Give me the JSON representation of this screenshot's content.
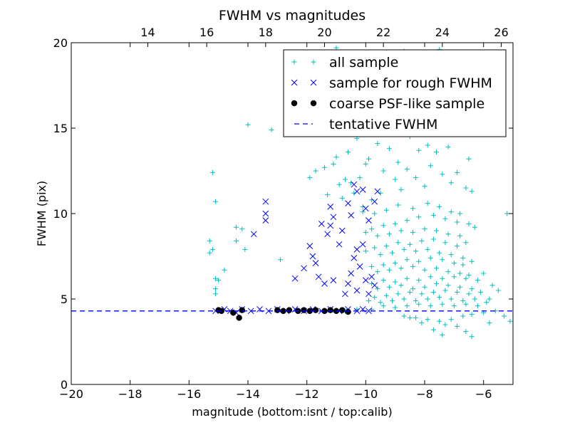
{
  "chart_data": {
    "type": "scatter",
    "title": "FWHM vs magnitudes",
    "xlabel": "magnitude (bottom:isnt / top:calib)",
    "ylabel": "FWHM (pix)",
    "xlim": [
      -20,
      -5
    ],
    "ylim": [
      0,
      20
    ],
    "x_ticks": [
      -20,
      -18,
      -16,
      -14,
      -12,
      -10,
      -8,
      -6
    ],
    "x_tick_labels": [
      "−20",
      "−18",
      "−16",
      "−14",
      "−12",
      "−10",
      "−8",
      "−6"
    ],
    "y_ticks": [
      0,
      5,
      10,
      15,
      20
    ],
    "y_tick_labels": [
      "0",
      "5",
      "10",
      "15",
      "20"
    ],
    "top_axis": {
      "label_offset": 31.4,
      "ticks": [
        14,
        16,
        18,
        20,
        22,
        24,
        26
      ],
      "tick_labels": [
        "14",
        "16",
        "18",
        "20",
        "22",
        "24",
        "26"
      ]
    },
    "grid": false,
    "legend_position": "top-right",
    "tentative_fwhm": 4.3,
    "series": [
      {
        "name": "all sample",
        "marker": "plus",
        "color": "#00bfbf",
        "points": [
          [
            -15.2,
            12.4
          ],
          [
            -15.1,
            10.7
          ],
          [
            -15.3,
            8.4
          ],
          [
            -15.3,
            7.7
          ],
          [
            -15.2,
            7.9
          ],
          [
            -15.1,
            6.2
          ],
          [
            -15.0,
            6.1
          ],
          [
            -15.1,
            5.6
          ],
          [
            -15.1,
            5.3
          ],
          [
            -14.8,
            6.7
          ],
          [
            -14.4,
            9.2
          ],
          [
            -14.2,
            9.1
          ],
          [
            -14.1,
            7.9
          ],
          [
            -14.4,
            8.4
          ],
          [
            -14.0,
            15.2
          ],
          [
            -13.2,
            14.9
          ],
          [
            -12.9,
            7.3
          ],
          [
            -11.9,
            12.1
          ],
          [
            -11.7,
            12.5
          ],
          [
            -11.4,
            12.7
          ],
          [
            -11.1,
            12.9
          ],
          [
            -11.0,
            13.3
          ],
          [
            -10.9,
            11.7
          ],
          [
            -10.7,
            12.0
          ],
          [
            -10.5,
            11.8
          ],
          [
            -10.3,
            14.4
          ],
          [
            -10.0,
            12.9
          ],
          [
            -10.2,
            12.1
          ],
          [
            -10.4,
            11.2
          ],
          [
            -10.1,
            10.4
          ],
          [
            -11.0,
            19.7
          ],
          [
            -9.3,
            19.2
          ],
          [
            -8.7,
            19.5
          ],
          [
            -7.5,
            19.6
          ],
          [
            -9.9,
            13.2
          ],
          [
            -9.6,
            14.1
          ],
          [
            -9.2,
            13.8
          ],
          [
            -8.9,
            13.0
          ],
          [
            -8.5,
            14.5
          ],
          [
            -8.2,
            13.7
          ],
          [
            -7.9,
            14.0
          ],
          [
            -7.6,
            13.6
          ],
          [
            -7.2,
            13.9
          ],
          [
            -7.8,
            12.8
          ],
          [
            -8.6,
            12.6
          ],
          [
            -9.4,
            12.5
          ],
          [
            -9.0,
            12.0
          ],
          [
            -8.3,
            12.1
          ],
          [
            -7.4,
            12.3
          ],
          [
            -6.9,
            12.4
          ],
          [
            -6.6,
            11.5
          ],
          [
            -6.4,
            11.3
          ],
          [
            -7.1,
            11.8
          ],
          [
            -8.0,
            11.6
          ],
          [
            -8.8,
            11.4
          ],
          [
            -9.5,
            11.2
          ],
          [
            -9.8,
            10.8
          ],
          [
            -10.1,
            10.1
          ],
          [
            -9.7,
            10.0
          ],
          [
            -9.3,
            10.2
          ],
          [
            -8.9,
            10.5
          ],
          [
            -8.4,
            10.3
          ],
          [
            -7.9,
            10.6
          ],
          [
            -7.5,
            10.4
          ],
          [
            -7.1,
            10.1
          ],
          [
            -6.8,
            10.0
          ],
          [
            -6.5,
            9.4
          ],
          [
            -6.3,
            9.2
          ],
          [
            -6.9,
            9.5
          ],
          [
            -7.3,
            9.7
          ],
          [
            -7.7,
            9.9
          ],
          [
            -8.2,
            9.8
          ],
          [
            -8.6,
            9.6
          ],
          [
            -9.0,
            9.4
          ],
          [
            -9.4,
            9.3
          ],
          [
            -9.8,
            9.1
          ],
          [
            -10.0,
            8.9
          ],
          [
            -9.6,
            8.7
          ],
          [
            -9.2,
            8.8
          ],
          [
            -8.8,
            9.0
          ],
          [
            -8.4,
            8.9
          ],
          [
            -8.0,
            9.1
          ],
          [
            -7.6,
            9.0
          ],
          [
            -7.2,
            8.8
          ],
          [
            -6.8,
            8.7
          ],
          [
            -6.6,
            8.3
          ],
          [
            -6.9,
            8.1
          ],
          [
            -7.3,
            8.3
          ],
          [
            -7.7,
            8.5
          ],
          [
            -8.1,
            8.4
          ],
          [
            -8.5,
            8.2
          ],
          [
            -8.9,
            8.3
          ],
          [
            -9.3,
            8.1
          ],
          [
            -9.7,
            8.0
          ],
          [
            -10.0,
            7.8
          ],
          [
            -9.5,
            7.6
          ],
          [
            -9.1,
            7.7
          ],
          [
            -8.7,
            7.9
          ],
          [
            -8.3,
            7.8
          ],
          [
            -7.9,
            7.9
          ],
          [
            -7.5,
            7.7
          ],
          [
            -7.1,
            7.6
          ],
          [
            -6.7,
            7.4
          ],
          [
            -6.4,
            7.2
          ],
          [
            -6.7,
            7.0
          ],
          [
            -7.0,
            7.1
          ],
          [
            -7.4,
            7.3
          ],
          [
            -7.8,
            7.4
          ],
          [
            -8.2,
            7.2
          ],
          [
            -8.6,
            7.3
          ],
          [
            -9.0,
            7.1
          ],
          [
            -9.4,
            7.0
          ],
          [
            -9.8,
            6.9
          ],
          [
            -9.6,
            6.6
          ],
          [
            -9.2,
            6.7
          ],
          [
            -8.8,
            6.8
          ],
          [
            -8.4,
            6.9
          ],
          [
            -8.0,
            6.7
          ],
          [
            -7.6,
            6.8
          ],
          [
            -7.2,
            6.6
          ],
          [
            -6.8,
            6.5
          ],
          [
            -6.5,
            6.4
          ],
          [
            -6.2,
            6.1
          ],
          [
            -6.6,
            6.2
          ],
          [
            -7.0,
            6.3
          ],
          [
            -7.4,
            6.2
          ],
          [
            -7.8,
            6.3
          ],
          [
            -8.2,
            6.1
          ],
          [
            -8.6,
            6.2
          ],
          [
            -9.0,
            6.0
          ],
          [
            -9.4,
            6.1
          ],
          [
            -9.8,
            5.9
          ],
          [
            -9.6,
            5.6
          ],
          [
            -9.2,
            5.7
          ],
          [
            -8.8,
            5.8
          ],
          [
            -8.4,
            5.6
          ],
          [
            -8.0,
            5.7
          ],
          [
            -7.6,
            5.9
          ],
          [
            -7.2,
            5.8
          ],
          [
            -6.8,
            5.7
          ],
          [
            -6.4,
            5.6
          ],
          [
            -6.1,
            5.4
          ],
          [
            -6.5,
            5.3
          ],
          [
            -6.9,
            5.4
          ],
          [
            -7.3,
            5.5
          ],
          [
            -7.7,
            5.4
          ],
          [
            -8.1,
            5.3
          ],
          [
            -8.5,
            5.4
          ],
          [
            -8.9,
            5.3
          ],
          [
            -9.3,
            5.2
          ],
          [
            -9.7,
            5.1
          ],
          [
            -9.9,
            4.9
          ],
          [
            -9.5,
            4.8
          ],
          [
            -9.1,
            4.9
          ],
          [
            -8.7,
            5.0
          ],
          [
            -8.3,
            4.9
          ],
          [
            -7.9,
            5.0
          ],
          [
            -7.5,
            5.1
          ],
          [
            -7.1,
            5.0
          ],
          [
            -6.7,
            4.9
          ],
          [
            -6.3,
            5.0
          ],
          [
            -5.9,
            4.8
          ],
          [
            -6.2,
            4.6
          ],
          [
            -6.6,
            4.7
          ],
          [
            -7.0,
            4.6
          ],
          [
            -7.4,
            4.7
          ],
          [
            -7.8,
            4.6
          ],
          [
            -8.2,
            4.7
          ],
          [
            -8.6,
            4.6
          ],
          [
            -9.0,
            4.5
          ],
          [
            -9.4,
            4.6
          ],
          [
            -9.8,
            4.4
          ],
          [
            -10.3,
            4.4
          ],
          [
            -10.7,
            4.3
          ],
          [
            -8.7,
            4.0
          ],
          [
            -8.3,
            3.9
          ],
          [
            -7.9,
            3.8
          ],
          [
            -7.5,
            3.7
          ],
          [
            -7.1,
            3.8
          ],
          [
            -6.7,
            4.0
          ],
          [
            -6.4,
            4.1
          ],
          [
            -6.0,
            4.2
          ],
          [
            -5.6,
            4.3
          ],
          [
            -5.3,
            4.0
          ],
          [
            -5.1,
            3.7
          ],
          [
            -6.9,
            3.4
          ],
          [
            -6.6,
            3.1
          ],
          [
            -7.3,
            3.5
          ],
          [
            -7.7,
            3.2
          ],
          [
            -7.4,
            2.9
          ],
          [
            -6.4,
            2.8
          ],
          [
            -8.1,
            3.6
          ],
          [
            -8.5,
            3.9
          ],
          [
            -5.8,
            3.6
          ],
          [
            -5.2,
            10.0
          ],
          [
            -6.5,
            13.2
          ],
          [
            -5.8,
            5.0
          ],
          [
            -5.5,
            5.5
          ],
          [
            -6.0,
            6.5
          ],
          [
            -5.7,
            5.8
          ],
          [
            -9.1,
            15.5
          ],
          [
            -7.8,
            15.0
          ],
          [
            -8.4,
            16.8
          ],
          [
            -7.2,
            17.6
          ],
          [
            -8.0,
            18.3
          ],
          [
            -9.6,
            16.2
          ],
          [
            -6.9,
            15.4
          ],
          [
            -10.6,
            13.6
          ],
          [
            -10.8,
            10.9
          ],
          [
            -11.3,
            11.1
          ]
        ]
      },
      {
        "name": "sample for rough FWHM",
        "marker": "x",
        "color": "#0000ff",
        "points": [
          [
            -13.4,
            10.7
          ],
          [
            -13.4,
            10.0
          ],
          [
            -13.4,
            9.6
          ],
          [
            -13.8,
            8.8
          ],
          [
            -12.4,
            6.2
          ],
          [
            -12.1,
            6.8
          ],
          [
            -11.9,
            8.1
          ],
          [
            -11.8,
            7.5
          ],
          [
            -11.7,
            7.1
          ],
          [
            -11.6,
            6.3
          ],
          [
            -11.5,
            9.4
          ],
          [
            -11.3,
            8.8
          ],
          [
            -11.2,
            10.4
          ],
          [
            -11.1,
            9.8
          ],
          [
            -11.2,
            9.3
          ],
          [
            -11.4,
            5.9
          ],
          [
            -11.1,
            6.1
          ],
          [
            -10.9,
            8.2
          ],
          [
            -10.8,
            9.0
          ],
          [
            -10.6,
            10.6
          ],
          [
            -10.5,
            9.9
          ],
          [
            -10.4,
            11.7
          ],
          [
            -10.3,
            11.3
          ],
          [
            -10.1,
            11.4
          ],
          [
            -10.0,
            10.3
          ],
          [
            -9.9,
            9.6
          ],
          [
            -10.1,
            8.2
          ],
          [
            -10.3,
            7.9
          ],
          [
            -10.2,
            6.9
          ],
          [
            -10.4,
            7.4
          ],
          [
            -10.5,
            6.5
          ],
          [
            -10.6,
            5.9
          ],
          [
            -10.7,
            5.3
          ],
          [
            -10.3,
            5.5
          ],
          [
            -10.0,
            6.1
          ],
          [
            -9.9,
            5.3
          ],
          [
            -9.7,
            10.7
          ],
          [
            -9.6,
            11.3
          ],
          [
            -9.8,
            6.3
          ],
          [
            -9.7,
            5.8
          ],
          [
            -15.1,
            4.3
          ],
          [
            -14.8,
            4.4
          ],
          [
            -14.6,
            4.3
          ],
          [
            -14.4,
            4.2
          ],
          [
            -14.2,
            4.4
          ],
          [
            -13.9,
            4.3
          ],
          [
            -13.6,
            4.4
          ],
          [
            -13.3,
            4.3
          ],
          [
            -13.0,
            4.4
          ],
          [
            -12.7,
            4.3
          ],
          [
            -12.4,
            4.4
          ],
          [
            -12.1,
            4.3
          ],
          [
            -11.8,
            4.4
          ],
          [
            -11.5,
            4.3
          ],
          [
            -11.2,
            4.4
          ],
          [
            -10.9,
            4.3
          ],
          [
            -10.6,
            4.4
          ],
          [
            -10.3,
            4.3
          ],
          [
            -10.1,
            4.4
          ],
          [
            -9.9,
            4.3
          ]
        ]
      },
      {
        "name": "coarse PSF-like sample",
        "marker": "dot",
        "color": "#000000",
        "points": [
          [
            -15.0,
            4.35
          ],
          [
            -14.9,
            4.3
          ],
          [
            -14.5,
            4.2
          ],
          [
            -14.3,
            3.9
          ],
          [
            -14.2,
            4.35
          ],
          [
            -13.0,
            4.35
          ],
          [
            -12.8,
            4.3
          ],
          [
            -12.6,
            4.35
          ],
          [
            -12.3,
            4.3
          ],
          [
            -12.1,
            4.35
          ],
          [
            -11.9,
            4.3
          ],
          [
            -11.7,
            4.35
          ],
          [
            -11.4,
            4.3
          ],
          [
            -11.2,
            4.35
          ],
          [
            -11.0,
            4.3
          ],
          [
            -10.8,
            4.35
          ],
          [
            -10.6,
            4.25
          ]
        ]
      }
    ],
    "legend": [
      {
        "label": "all sample",
        "marker": "plus",
        "color": "#00bfbf"
      },
      {
        "label": "sample for rough FWHM",
        "marker": "x",
        "color": "#0000ff"
      },
      {
        "label": "coarse PSF-like sample",
        "marker": "dot",
        "color": "#000000"
      },
      {
        "label": "tentative FWHM",
        "marker": "dashed-line",
        "color": "#0000ff"
      }
    ]
  }
}
